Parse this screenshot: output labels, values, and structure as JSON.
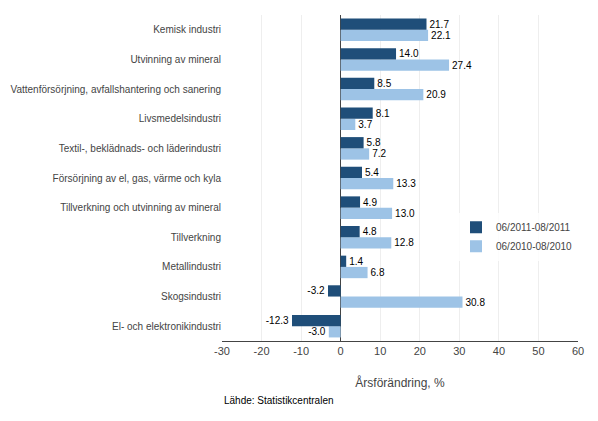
{
  "chart_data": {
    "type": "bar",
    "orientation": "horizontal",
    "categories": [
      "El- och elektronikindustri",
      "Skogsindustri",
      "Metallindustri",
      "Tillverkning",
      "Tillverkning och utvinning av mineral",
      "Försörjning av el, gas, värme och kyla",
      "Textil-, beklädnads- och läderindustri",
      "Livsmedelsindustri",
      "Vattenförsörjning, avfallshantering och sanering",
      "Utvinning av mineral",
      "Kemisk industri"
    ],
    "series": [
      {
        "name": "06/2011-08/2011",
        "color": "#1F4E79",
        "values": [
          -12.3,
          -3.2,
          1.4,
          4.8,
          4.9,
          5.4,
          5.8,
          8.1,
          8.5,
          14.0,
          21.7
        ],
        "value_labels": [
          "-12.3",
          "-3.2",
          "1.4",
          "4.8",
          "4.9",
          "5.4",
          "5.8",
          "8.1",
          "8.5",
          "14.0",
          "21.7"
        ]
      },
      {
        "name": "06/2010-08/2010",
        "color": "#9DC3E6",
        "values": [
          -3.0,
          30.8,
          6.8,
          12.8,
          13.0,
          13.3,
          7.2,
          3.7,
          20.9,
          27.4,
          22.1
        ],
        "value_labels": [
          "-3.0",
          "30.8",
          "6.8",
          "12.8",
          "13.0",
          "13.3",
          "7.2",
          "3.7",
          "20.9",
          "27.4",
          "22.1"
        ]
      }
    ],
    "xlabel": "Årsförändring, %",
    "xlim": [
      -30,
      60
    ],
    "xticks": [
      -30,
      -20,
      -10,
      0,
      10,
      20,
      30,
      40,
      50,
      60
    ],
    "grid": true,
    "legend": "right",
    "data_labels": true,
    "source": "Lähde: Statistikcentralen"
  }
}
